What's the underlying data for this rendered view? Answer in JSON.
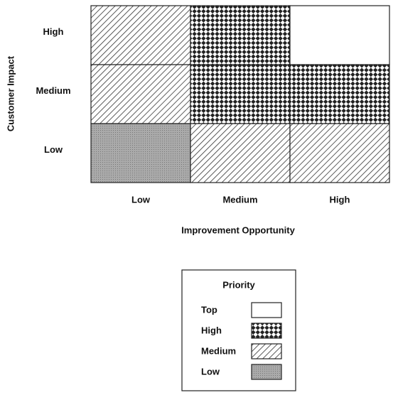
{
  "y_axis": {
    "title": "Customer Impact",
    "labels": [
      "High",
      "Medium",
      "Low"
    ]
  },
  "x_axis": {
    "title": "Improvement Opportunity",
    "labels": [
      "Low",
      "Medium",
      "High"
    ]
  },
  "cells": [
    [
      "Medium",
      "High",
      "Top"
    ],
    [
      "Medium",
      "High",
      "High"
    ],
    [
      "Low",
      "Medium",
      "Medium"
    ]
  ],
  "legend": {
    "title": "Priority",
    "items": [
      "Top",
      "High",
      "Medium",
      "Low"
    ]
  }
}
